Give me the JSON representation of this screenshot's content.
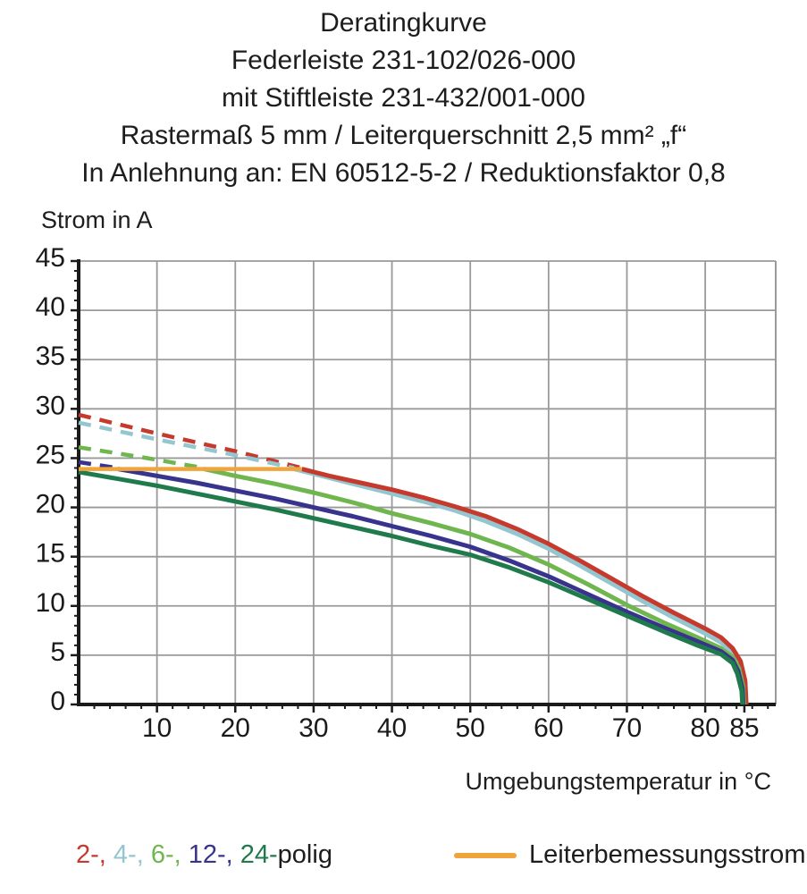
{
  "title": {
    "lines": [
      "Deratingkurve",
      "Federleiste 231-102/026-000",
      "mit Stiftleiste 231-432/001-000",
      "Rastermaß 5 mm / Leiterquerschnitt 2,5 mm² „f“",
      "In Anlehnung an: EN 60512-5-2 / Reduktionsfaktor 0,8"
    ]
  },
  "legend": {
    "pole_items": [
      {
        "name": "2-polig",
        "label": "2-,",
        "color": "#c53a2d"
      },
      {
        "name": "4-polig",
        "label": "4-,",
        "color": "#93c6cf"
      },
      {
        "name": "6-polig",
        "label": "6-,",
        "color": "#70b64f"
      },
      {
        "name": "12-polig",
        "label": "12-,",
        "color": "#38348e"
      },
      {
        "name": "24-polig",
        "label": "24-",
        "color": "#1f7a4c"
      }
    ],
    "separator": " ",
    "suffix": "polig",
    "suffix_color": "#1d1d1d",
    "rated_current": {
      "label": "Leiterbemessungsstrom",
      "color": "#f0a43c"
    }
  },
  "chart_data": {
    "type": "line",
    "title": "Deratingkurve",
    "xlabel": "Umgebungstemperatur in °C",
    "ylabel": "Strom in A",
    "xlim": [
      0,
      89
    ],
    "ylim": [
      0,
      45
    ],
    "grid": true,
    "legend_position": "bottom",
    "x_major_ticks": [
      10,
      20,
      30,
      40,
      50,
      60,
      70,
      80,
      85
    ],
    "y_major_ticks": [
      0,
      5,
      10,
      15,
      20,
      25,
      30,
      35,
      40,
      45
    ],
    "x_gridlines": [
      10,
      20,
      30,
      40,
      50,
      60,
      70,
      80
    ],
    "y_gridlines": [
      5,
      10,
      15,
      20,
      25,
      30,
      35,
      40,
      45
    ],
    "x_minor_step": 2,
    "y_minor_step": 1,
    "grid_color": "#9a9a9a",
    "axis_color": "#1a1a1a",
    "text_color": "#1a1a1a",
    "series": [
      {
        "name": "2-polig Projektion",
        "style": "dashed",
        "color": "#c53a2d",
        "width": 4.5,
        "points": [
          [
            0,
            29.4
          ],
          [
            10,
            27.5
          ],
          [
            20,
            25.7
          ],
          [
            28.5,
            24.0
          ]
        ]
      },
      {
        "name": "4-polig Projektion",
        "style": "dashed",
        "color": "#93c6cf",
        "width": 4.5,
        "points": [
          [
            0,
            28.6
          ],
          [
            10,
            26.9
          ],
          [
            20,
            25.3
          ],
          [
            27.5,
            24.0
          ]
        ]
      },
      {
        "name": "6-polig Projektion",
        "style": "dashed",
        "color": "#70b64f",
        "width": 4.5,
        "points": [
          [
            0,
            26.1
          ],
          [
            8,
            25.1
          ],
          [
            16,
            24.0
          ]
        ]
      },
      {
        "name": "12-polig Projektion",
        "style": "dashed",
        "color": "#38348e",
        "width": 4.5,
        "points": [
          [
            0,
            24.6
          ],
          [
            5,
            24.0
          ]
        ]
      },
      {
        "name": "4-polig",
        "style": "solid",
        "color": "#93c6cf",
        "width": 5,
        "points": [
          [
            27.5,
            23.9
          ],
          [
            32,
            23.0
          ],
          [
            36,
            22.2
          ],
          [
            40,
            21.4
          ],
          [
            44,
            20.6
          ],
          [
            48,
            19.7
          ],
          [
            52,
            18.6
          ],
          [
            56,
            17.3
          ],
          [
            60,
            15.8
          ],
          [
            64,
            14.1
          ],
          [
            68,
            12.3
          ],
          [
            72,
            10.5
          ],
          [
            76,
            8.8
          ],
          [
            80,
            7.2
          ],
          [
            82,
            6.3
          ],
          [
            83.5,
            5.3
          ],
          [
            84.4,
            4.1
          ],
          [
            85.0,
            2.2
          ],
          [
            85.1,
            0
          ]
        ]
      },
      {
        "name": "2-polig",
        "style": "solid",
        "color": "#c53a2d",
        "width": 5,
        "points": [
          [
            28.5,
            23.9
          ],
          [
            32,
            23.2
          ],
          [
            36,
            22.5
          ],
          [
            40,
            21.8
          ],
          [
            44,
            21.0
          ],
          [
            48,
            20.1
          ],
          [
            52,
            19.1
          ],
          [
            56,
            17.8
          ],
          [
            60,
            16.3
          ],
          [
            64,
            14.6
          ],
          [
            68,
            12.8
          ],
          [
            72,
            11.0
          ],
          [
            76,
            9.3
          ],
          [
            80,
            7.7
          ],
          [
            82,
            6.8
          ],
          [
            83.5,
            5.7
          ],
          [
            84.5,
            4.4
          ],
          [
            85.1,
            2.4
          ],
          [
            85.25,
            0
          ]
        ]
      },
      {
        "name": "6-polig",
        "style": "solid",
        "color": "#70b64f",
        "width": 5,
        "points": [
          [
            16,
            23.9
          ],
          [
            20,
            23.2
          ],
          [
            25,
            22.4
          ],
          [
            30,
            21.5
          ],
          [
            35,
            20.5
          ],
          [
            40,
            19.4
          ],
          [
            45,
            18.4
          ],
          [
            50,
            17.3
          ],
          [
            55,
            15.9
          ],
          [
            60,
            14.2
          ],
          [
            65,
            12.2
          ],
          [
            70,
            10.1
          ],
          [
            75,
            8.2
          ],
          [
            79,
            6.8
          ],
          [
            82,
            5.7
          ],
          [
            83.5,
            4.8
          ],
          [
            84.3,
            3.7
          ],
          [
            84.85,
            1.8
          ],
          [
            84.95,
            0
          ]
        ]
      },
      {
        "name": "12-polig",
        "style": "solid",
        "color": "#38348e",
        "width": 5,
        "points": [
          [
            5,
            23.9
          ],
          [
            10,
            23.2
          ],
          [
            15,
            22.5
          ],
          [
            20,
            21.7
          ],
          [
            25,
            20.9
          ],
          [
            30,
            20.0
          ],
          [
            35,
            19.1
          ],
          [
            40,
            18.1
          ],
          [
            45,
            17.1
          ],
          [
            50,
            16.0
          ],
          [
            55,
            14.6
          ],
          [
            60,
            13.0
          ],
          [
            65,
            11.2
          ],
          [
            70,
            9.4
          ],
          [
            75,
            7.7
          ],
          [
            79,
            6.4
          ],
          [
            82,
            5.4
          ],
          [
            83.5,
            4.5
          ],
          [
            84.2,
            3.4
          ],
          [
            84.75,
            1.6
          ],
          [
            84.85,
            0
          ]
        ]
      },
      {
        "name": "24-polig",
        "style": "solid",
        "color": "#1f7a4c",
        "width": 5,
        "points": [
          [
            0,
            23.6
          ],
          [
            5,
            22.9
          ],
          [
            10,
            22.2
          ],
          [
            15,
            21.4
          ],
          [
            20,
            20.6
          ],
          [
            25,
            19.8
          ],
          [
            30,
            18.9
          ],
          [
            35,
            18.0
          ],
          [
            40,
            17.1
          ],
          [
            45,
            16.1
          ],
          [
            50,
            15.2
          ],
          [
            55,
            13.9
          ],
          [
            60,
            12.4
          ],
          [
            65,
            10.7
          ],
          [
            70,
            9.0
          ],
          [
            75,
            7.3
          ],
          [
            79,
            6.0
          ],
          [
            82,
            5.1
          ],
          [
            83.5,
            4.2
          ],
          [
            84.1,
            3.1
          ],
          [
            84.65,
            1.4
          ],
          [
            84.75,
            0
          ]
        ]
      },
      {
        "name": "Leiterbemessungsstrom",
        "style": "solid",
        "color": "#f0a43c",
        "width": 4.5,
        "points": [
          [
            0,
            23.9
          ],
          [
            28.5,
            23.9
          ]
        ]
      }
    ]
  }
}
